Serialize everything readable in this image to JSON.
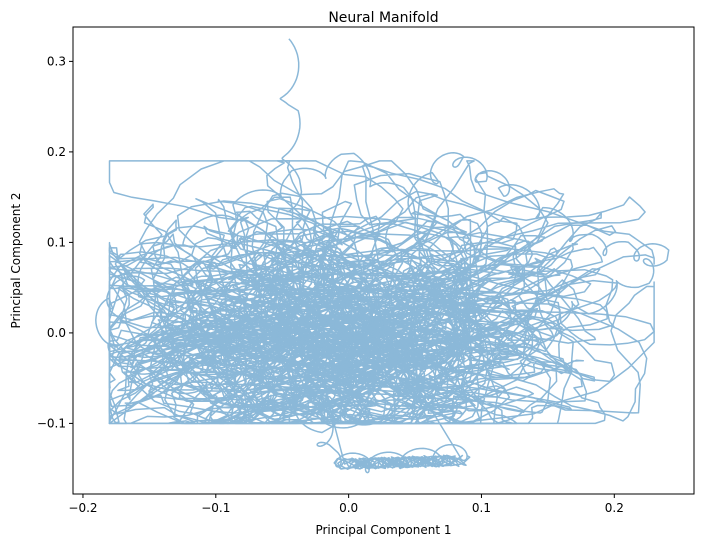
{
  "chart_data": {
    "type": "line",
    "title": "Neural Manifold",
    "xlabel": "Principal Component 1",
    "ylabel": "Principal Component 2",
    "xlim": [
      -0.2075,
      0.26
    ],
    "ylim": [
      -0.178,
      0.338
    ],
    "xticks": [
      -0.2,
      -0.1,
      0.0,
      0.1,
      0.2
    ],
    "xtick_labels": [
      "−0.2",
      "−0.1",
      "0.0",
      "0.1",
      "0.2"
    ],
    "yticks": [
      -0.1,
      0.0,
      0.1,
      0.2,
      0.3
    ],
    "ytick_labels": [
      "−0.1",
      "0.0",
      "0.1",
      "0.2",
      "0.3"
    ],
    "grid": false,
    "series": [
      {
        "color": "#8bb8d8",
        "trajectory_samples": {
          "x": [
            -0.045,
            -0.044,
            -0.042,
            -0.035,
            -0.02,
            0.0,
            0.02,
            0.04,
            0.06,
            0.08,
            0.1,
            0.12,
            0.15,
            0.18,
            0.21,
            0.235,
            0.22,
            0.18,
            0.14,
            0.1,
            0.06,
            0.02,
            -0.02,
            -0.06,
            -0.1,
            -0.14,
            -0.18,
            -0.185,
            -0.16,
            -0.12,
            -0.08,
            -0.04,
            0.0,
            0.04,
            0.08,
            0.1,
            0.06,
            0.02,
            -0.02,
            -0.015,
            0.01,
            0.04,
            0.07,
            0.09
          ],
          "y": [
            0.315,
            0.24,
            0.16,
            0.1,
            0.06,
            0.05,
            0.08,
            0.12,
            0.17,
            0.195,
            0.175,
            0.16,
            0.13,
            0.1,
            0.09,
            0.088,
            0.06,
            0.03,
            0.01,
            -0.02,
            -0.06,
            -0.09,
            -0.1,
            -0.085,
            -0.07,
            -0.05,
            -0.02,
            0.032,
            0.06,
            0.105,
            0.14,
            0.17,
            0.19,
            0.15,
            0.05,
            -0.03,
            -0.07,
            -0.095,
            -0.095,
            -0.135,
            -0.145,
            -0.14,
            -0.135,
            -0.13
          ]
        }
      }
    ]
  }
}
